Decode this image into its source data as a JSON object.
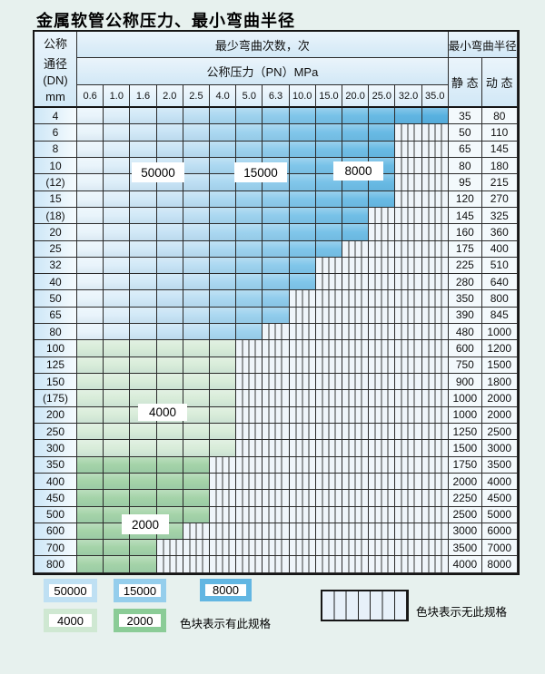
{
  "title": "金属软管公称压力、最小弯曲半径",
  "header": {
    "dn_lines": [
      "公称",
      "通径",
      "(DN)",
      "mm"
    ],
    "bend_times": "最少弯曲次数，次",
    "pressure": "公称压力（PN）MPa",
    "radius": "最小弯曲半径",
    "static": "静 态",
    "dynamic": "动 态"
  },
  "pressures": [
    "0.6",
    "1.0",
    "1.6",
    "2.0",
    "2.5",
    "4.0",
    "5.0",
    "6.3",
    "10.0",
    "15.0",
    "20.0",
    "25.0",
    "32.0",
    "35.0"
  ],
  "colors": {
    "blue_ramp": [
      "#e9f4fb",
      "#ddeef9",
      "#d2e9f7",
      "#c7e3f5",
      "#bedff3",
      "#abd8f1",
      "#9dd2ee",
      "#90ccec",
      "#80c6ea",
      "#78c2e8",
      "#70bee6",
      "#68bae4",
      "#60b5e2",
      "#58b1e0"
    ],
    "green_light": "#d8ecd9",
    "green_dark": "#a4d3a8",
    "legend": {
      "50000": "#bfe0f3",
      "15000": "#95ceec",
      "8000": "#62b6e2",
      "4000": "#cfe8d2",
      "2000": "#8bcc97"
    }
  },
  "rows": [
    {
      "dn": "4",
      "colored": 14,
      "zone": "blue",
      "static": "35",
      "dynamic": "80"
    },
    {
      "dn": "6",
      "colored": 12,
      "zone": "blue",
      "static": "50",
      "dynamic": "110"
    },
    {
      "dn": "8",
      "colored": 12,
      "zone": "blue",
      "static": "65",
      "dynamic": "145"
    },
    {
      "dn": "10",
      "colored": 12,
      "zone": "blue",
      "static": "80",
      "dynamic": "180"
    },
    {
      "dn": "(12)",
      "colored": 12,
      "zone": "blue",
      "static": "95",
      "dynamic": "215"
    },
    {
      "dn": "15",
      "colored": 12,
      "zone": "blue",
      "static": "120",
      "dynamic": "270"
    },
    {
      "dn": "(18)",
      "colored": 11,
      "zone": "blue",
      "static": "145",
      "dynamic": "325"
    },
    {
      "dn": "20",
      "colored": 11,
      "zone": "blue",
      "static": "160",
      "dynamic": "360"
    },
    {
      "dn": "25",
      "colored": 10,
      "zone": "blue",
      "static": "175",
      "dynamic": "400"
    },
    {
      "dn": "32",
      "colored": 9,
      "zone": "blue",
      "static": "225",
      "dynamic": "510"
    },
    {
      "dn": "40",
      "colored": 9,
      "zone": "blue",
      "static": "280",
      "dynamic": "640"
    },
    {
      "dn": "50",
      "colored": 8,
      "zone": "blue",
      "static": "350",
      "dynamic": "800"
    },
    {
      "dn": "65",
      "colored": 8,
      "zone": "blue",
      "static": "390",
      "dynamic": "845"
    },
    {
      "dn": "80",
      "colored": 7,
      "zone": "blue",
      "static": "480",
      "dynamic": "1000"
    },
    {
      "dn": "100",
      "colored": 6,
      "zone": "green_light",
      "static": "600",
      "dynamic": "1200"
    },
    {
      "dn": "125",
      "colored": 6,
      "zone": "green_light",
      "static": "750",
      "dynamic": "1500"
    },
    {
      "dn": "150",
      "colored": 6,
      "zone": "green_light",
      "static": "900",
      "dynamic": "1800"
    },
    {
      "dn": "(175)",
      "colored": 6,
      "zone": "green_light",
      "static": "1000",
      "dynamic": "2000"
    },
    {
      "dn": "200",
      "colored": 6,
      "zone": "green_light",
      "static": "1000",
      "dynamic": "2000"
    },
    {
      "dn": "250",
      "colored": 6,
      "zone": "green_light",
      "static": "1250",
      "dynamic": "2500"
    },
    {
      "dn": "300",
      "colored": 6,
      "zone": "green_light",
      "static": "1500",
      "dynamic": "3000"
    },
    {
      "dn": "350",
      "colored": 5,
      "zone": "green_dark",
      "static": "1750",
      "dynamic": "3500"
    },
    {
      "dn": "400",
      "colored": 5,
      "zone": "green_dark",
      "static": "2000",
      "dynamic": "4000"
    },
    {
      "dn": "450",
      "colored": 5,
      "zone": "green_dark",
      "static": "2250",
      "dynamic": "4500"
    },
    {
      "dn": "500",
      "colored": 5,
      "zone": "green_dark",
      "static": "2500",
      "dynamic": "5000"
    },
    {
      "dn": "600",
      "colored": 4,
      "zone": "green_dark",
      "static": "3000",
      "dynamic": "6000"
    },
    {
      "dn": "700",
      "colored": 3,
      "zone": "green_dark",
      "static": "3500",
      "dynamic": "7000"
    },
    {
      "dn": "800",
      "colored": 3,
      "zone": "green_dark",
      "static": "4000",
      "dynamic": "8000"
    }
  ],
  "cycle_labels": [
    "50000",
    "15000",
    "8000",
    "4000",
    "2000"
  ],
  "legend": {
    "row1": [
      "50000",
      "15000",
      "8000"
    ],
    "row2": [
      "4000",
      "2000"
    ],
    "has_text": "色块表示有此规格",
    "none_text": "色块表示无此规格"
  }
}
